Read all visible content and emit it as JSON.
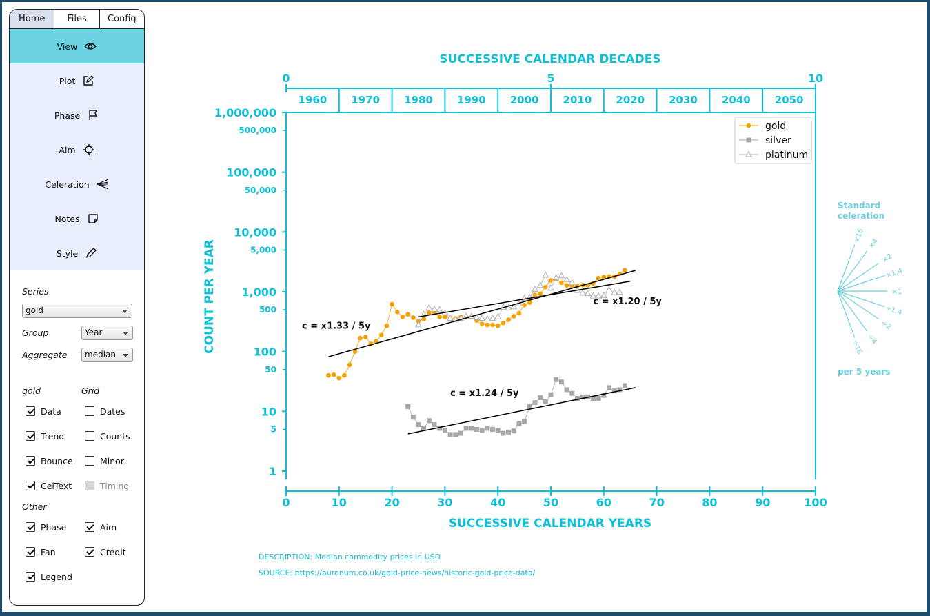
{
  "tabs": [
    "Home",
    "Files",
    "Config"
  ],
  "active_tab": 0,
  "menu": [
    {
      "label": "View",
      "icon": "eye-icon",
      "active": true
    },
    {
      "label": "Plot",
      "icon": "edit-icon"
    },
    {
      "label": "Phase",
      "icon": "flag-icon"
    },
    {
      "label": "Aim",
      "icon": "crosshair-icon"
    },
    {
      "label": "Celeration",
      "icon": "fan-icon"
    },
    {
      "label": "Notes",
      "icon": "note-icon"
    },
    {
      "label": "Style",
      "icon": "pen-icon"
    }
  ],
  "controls": {
    "series_label": "Series",
    "series_value": "gold",
    "group_label": "Group",
    "group_value": "Year",
    "aggregate_label": "Aggregate",
    "aggregate_value": "median",
    "gold_heading": "gold",
    "grid_heading": "Grid",
    "other_heading": "Other",
    "gold_checks": [
      {
        "label": "Data",
        "checked": true
      },
      {
        "label": "Trend",
        "checked": true
      },
      {
        "label": "Bounce",
        "checked": true
      },
      {
        "label": "CelText",
        "checked": true
      }
    ],
    "grid_checks": [
      {
        "label": "Dates",
        "checked": false
      },
      {
        "label": "Counts",
        "checked": false
      },
      {
        "label": "Minor",
        "checked": false
      },
      {
        "label": "Timing",
        "checked": false,
        "disabled": true
      }
    ],
    "other_checks_left": [
      {
        "label": "Phase",
        "checked": true
      },
      {
        "label": "Fan",
        "checked": true
      },
      {
        "label": "Legend",
        "checked": true
      }
    ],
    "other_checks_right": [
      {
        "label": "Aim",
        "checked": true
      },
      {
        "label": "Credit",
        "checked": true
      }
    ]
  },
  "colors": {
    "axis": "#0fbfd6",
    "fan": "#6bcfe0",
    "gold": "#f5a000",
    "silver": "#a8a8a8",
    "platinum": "#b0b0b0",
    "trend": "#000000",
    "active_menu": "#6bd3e2",
    "menu_bg": "#e8eefb"
  },
  "description": "DESCRIPTION: Median commodity prices in USD",
  "source": "SOURCE: https://auronum.co.uk/gold-price-news/historic-gold-price-data/",
  "chart_data": {
    "type": "scatter",
    "title": "",
    "xlabel": "SUCCESSIVE CALENDAR YEARS",
    "ylabel": "COUNT PER YEAR",
    "top_label": "SUCCESSIVE CALENDAR DECADES",
    "xlim": [
      0,
      100
    ],
    "ylim": [
      1,
      1000000
    ],
    "y_scale": "log",
    "x_ticks": [
      0,
      10,
      20,
      30,
      40,
      50,
      60,
      70,
      80,
      90,
      100
    ],
    "y_major_ticks": [
      {
        "v": 1,
        "t": "1"
      },
      {
        "v": 10,
        "t": "10"
      },
      {
        "v": 100,
        "t": "100"
      },
      {
        "v": 1000,
        "t": "1,000"
      },
      {
        "v": 10000,
        "t": "10,000"
      },
      {
        "v": 100000,
        "t": "100,000"
      },
      {
        "v": 1000000,
        "t": "1,000,000"
      }
    ],
    "y_minor_ticks": [
      {
        "v": 5,
        "t": "5"
      },
      {
        "v": 50,
        "t": "50"
      },
      {
        "v": 500,
        "t": "500"
      },
      {
        "v": 5000,
        "t": "5,000"
      },
      {
        "v": 50000,
        "t": "50,000"
      },
      {
        "v": 500000,
        "t": "500,000"
      }
    ],
    "top_ticks": [
      {
        "x": 0,
        "t": "0"
      },
      {
        "x": 50,
        "t": "5"
      },
      {
        "x": 100,
        "t": "10"
      }
    ],
    "decades": [
      "1960",
      "1970",
      "1980",
      "1990",
      "2000",
      "2010",
      "2020",
      "2030",
      "2040",
      "2050"
    ],
    "legend_position": "top-right",
    "legend": [
      {
        "name": "gold",
        "marker": "circle"
      },
      {
        "name": "silver",
        "marker": "square"
      },
      {
        "name": "platinum",
        "marker": "triangle"
      }
    ],
    "series": [
      {
        "name": "gold",
        "x": [
          8,
          9,
          10,
          11,
          12,
          13,
          14,
          15,
          16,
          17,
          18,
          19,
          20,
          21,
          22,
          23,
          24,
          25,
          26,
          27,
          28,
          29,
          30,
          31,
          32,
          33,
          34,
          35,
          36,
          37,
          38,
          39,
          40,
          41,
          42,
          43,
          44,
          45,
          46,
          47,
          48,
          49,
          50,
          51,
          52,
          53,
          54,
          55,
          56,
          57,
          58,
          59,
          60,
          61,
          62,
          63,
          64
        ],
        "y": [
          40,
          41,
          36,
          40,
          60,
          100,
          168,
          175,
          135,
          150,
          190,
          270,
          620,
          460,
          380,
          420,
          370,
          320,
          350,
          450,
          450,
          380,
          380,
          360,
          360,
          380,
          380,
          380,
          330,
          290,
          280,
          280,
          270,
          300,
          340,
          390,
          440,
          600,
          660,
          880,
          930,
          1200,
          1550,
          1640,
          1420,
          1280,
          1250,
          1260,
          1300,
          1280,
          1380,
          1700,
          1770,
          1800,
          1790,
          2000,
          2300
        ]
      },
      {
        "name": "silver",
        "x": [
          23,
          24,
          25,
          26,
          27,
          28,
          29,
          30,
          31,
          32,
          33,
          34,
          35,
          36,
          37,
          38,
          39,
          40,
          41,
          42,
          43,
          44,
          45,
          46,
          47,
          48,
          49,
          50,
          51,
          52,
          53,
          54,
          55,
          56,
          57,
          58,
          59,
          60,
          61,
          62,
          63,
          64
        ],
        "y": [
          12,
          8,
          6,
          5.2,
          7,
          6,
          5.2,
          4.8,
          4.1,
          4.1,
          4.3,
          5.2,
          5.2,
          5,
          4.8,
          5.2,
          5,
          4.8,
          4.3,
          4.5,
          4.7,
          6.2,
          6.8,
          12,
          14,
          17,
          14.5,
          19,
          34,
          31,
          23,
          20,
          16.5,
          17.5,
          17.5,
          16.5,
          16.5,
          18.5,
          25,
          22,
          23,
          27
        ]
      },
      {
        "name": "platinum",
        "x": [
          25,
          26,
          27,
          28,
          29,
          30,
          31,
          32,
          33,
          34,
          35,
          36,
          37,
          38,
          39,
          40,
          41,
          42,
          43,
          44,
          45,
          46,
          47,
          48,
          49,
          50,
          51,
          52,
          53,
          54,
          55,
          56,
          57,
          58,
          59,
          60,
          61,
          62,
          63
        ],
        "y": [
          280,
          420,
          540,
          510,
          500,
          450,
          360,
          340,
          360,
          390,
          390,
          370,
          360,
          350,
          360,
          380,
          550,
          540,
          560,
          630,
          780,
          800,
          1100,
          1280,
          1900,
          1150,
          1720,
          1850,
          1600,
          1420,
          1050,
          950,
          930,
          850,
          850,
          860,
          1070,
          970,
          980
        ]
      }
    ],
    "trends": [
      {
        "series": "gold",
        "x": [
          8,
          66
        ],
        "y": [
          82,
          2280
        ],
        "label": "c = x1.33 / 5y",
        "label_x": 3,
        "label_y": 240
      },
      {
        "series": "platinum",
        "x": [
          25,
          65
        ],
        "y": [
          380,
          1500
        ],
        "label": "c = x1.20 / 5y",
        "label_x": 58,
        "label_y": 620
      },
      {
        "series": "silver",
        "x": [
          23,
          66
        ],
        "y": [
          4.2,
          25
        ],
        "label": "c = x1.24 / 5y",
        "label_x": 31,
        "label_y": 18
      }
    ],
    "fan": {
      "title_line1": "Standard",
      "title_line2": "celeration",
      "footer": "per 5 years",
      "rays": [
        {
          "label": "×16",
          "factor": 16
        },
        {
          "label": "×4",
          "factor": 4
        },
        {
          "label": "×2",
          "factor": 2
        },
        {
          "label": "×1.4",
          "factor": 1.4
        },
        {
          "label": "×1",
          "factor": 1
        },
        {
          "label": "÷1.4",
          "factor": 0.714
        },
        {
          "label": "÷2",
          "factor": 0.5
        },
        {
          "label": "÷4",
          "factor": 0.25
        },
        {
          "label": "÷16",
          "factor": 0.0625
        }
      ]
    }
  }
}
